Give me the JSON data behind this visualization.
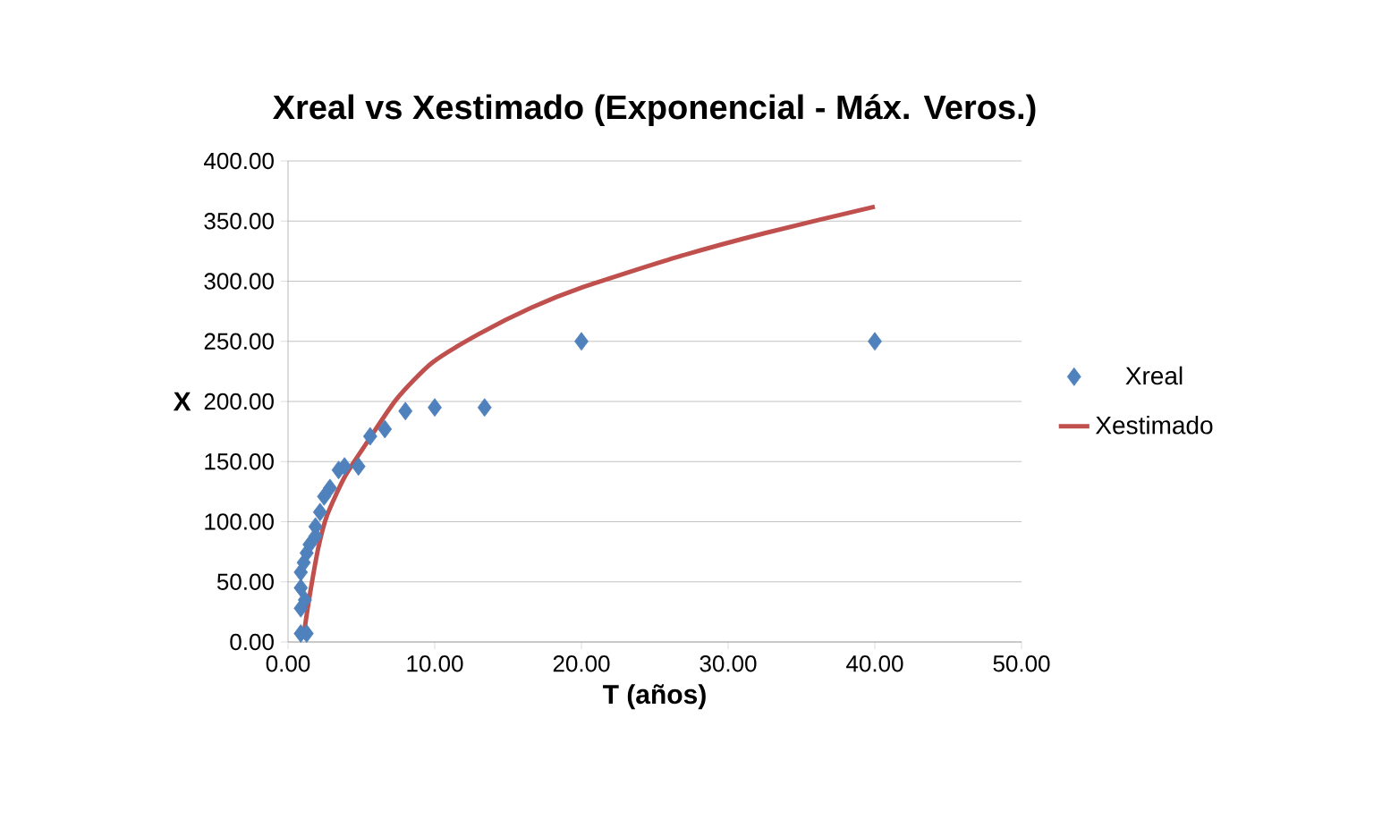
{
  "chart_data": {
    "type": "scatter",
    "title": "Xreal vs Xestimado (Exponencial - Máx. Veros.)",
    "xlabel": "T (años)",
    "ylabel": "X",
    "xlim": [
      0,
      50
    ],
    "ylim": [
      0,
      400
    ],
    "xticks": [
      {
        "value": 0,
        "label": "0.00"
      },
      {
        "value": 10,
        "label": "10.00"
      },
      {
        "value": 20,
        "label": "20.00"
      },
      {
        "value": 30,
        "label": "30.00"
      },
      {
        "value": 40,
        "label": "40.00"
      },
      {
        "value": 50,
        "label": "50.00"
      }
    ],
    "yticks": [
      {
        "value": 0,
        "label": "0.00"
      },
      {
        "value": 50,
        "label": "50.00"
      },
      {
        "value": 100,
        "label": "100.00"
      },
      {
        "value": 150,
        "label": "150.00"
      },
      {
        "value": 200,
        "label": "200.00"
      },
      {
        "value": 250,
        "label": "250.00"
      },
      {
        "value": 300,
        "label": "300.00"
      },
      {
        "value": 350,
        "label": "350.00"
      },
      {
        "value": 400,
        "label": "400.00"
      }
    ],
    "grid": "y",
    "legend": "right",
    "series": [
      {
        "name": "Xreal",
        "marker": "diamond",
        "color": "#4f81bd",
        "x": [
          0.87,
          1.27,
          0.87,
          1.15,
          0.87,
          0.87,
          1.07,
          1.27,
          1.47,
          1.87,
          1.87,
          2.18,
          2.46,
          2.86,
          3.45,
          3.85,
          4.8,
          5.6,
          6.6,
          8.0,
          10.0,
          13.4,
          20.0,
          40.0
        ],
        "values": [
          7,
          7,
          28,
          35,
          45,
          58,
          66,
          74,
          81,
          88,
          96,
          108,
          121,
          128,
          143,
          146,
          146,
          171,
          177,
          192,
          195,
          195,
          250,
          250
        ]
      },
      {
        "name": "Xestimado",
        "type": "line",
        "marker": "none",
        "color": "#c0504d",
        "x": [
          1.07,
          1.47,
          2.06,
          2.65,
          3.85,
          5.44,
          7.4,
          9.8,
          13.0,
          16.6,
          20.1,
          26.5,
          32.5,
          40.0
        ],
        "values": [
          6,
          38,
          78,
          105,
          137,
          167,
          202,
          232,
          256,
          278,
          295,
          320,
          340,
          362
        ]
      }
    ]
  }
}
